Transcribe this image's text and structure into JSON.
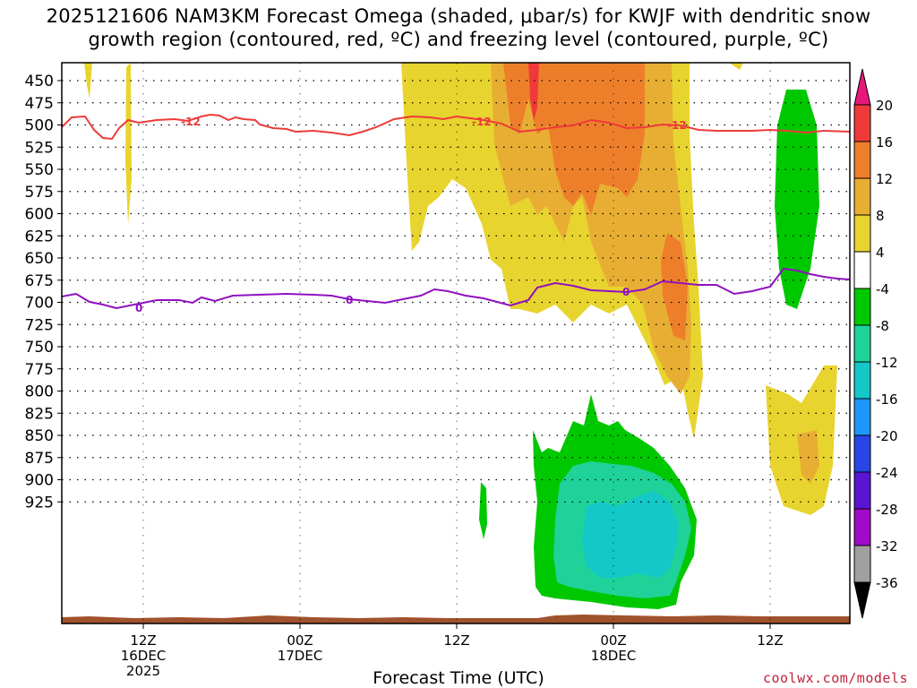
{
  "title_line1": "2025121606 NAM3KM Forecast Omega (shaded, μbar/s) for KWJF with dendritic snow",
  "title_line2": "growth region (contoured, red, ºC) and freezing level (contoured, purple, ºC)",
  "xaxis_title": "Forecast Time (UTC)",
  "credit": "coolwx.com/models",
  "chart_data": {
    "type": "time-height",
    "title": "2025121606 NAM3KM Forecast Omega (shaded, μbar/s) for KWJF with dendritic snow growth region (contoured, red, ºC) and freezing level (contoured, purple, ºC)",
    "xlabel": "Forecast Time (UTC)",
    "ylabel": "",
    "y_scale": "pressure (inverted)",
    "y_ticks": [
      450,
      475,
      500,
      525,
      550,
      575,
      600,
      625,
      650,
      675,
      700,
      725,
      750,
      775,
      800,
      825,
      850,
      875,
      900,
      925
    ],
    "x_ticks": [
      {
        "label": "12Z",
        "sub": "16DEC",
        "sub2": "2025"
      },
      {
        "label": "00Z",
        "sub": "17DEC",
        "sub2": ""
      },
      {
        "label": "12Z",
        "sub": "",
        "sub2": ""
      },
      {
        "label": "00Z",
        "sub": "18DEC",
        "sub2": ""
      },
      {
        "label": "12Z",
        "sub": "",
        "sub2": ""
      }
    ],
    "grid": true,
    "colorbar": {
      "ticks": [
        20,
        16,
        12,
        8,
        4,
        -4,
        -8,
        -12,
        -16,
        -20,
        -24,
        -28,
        -32,
        -36
      ],
      "colors": [
        "#e8187a",
        "#f03a3a",
        "#ee7f2a",
        "#e8ae33",
        "#e8d42e",
        "#ffffff",
        "#00c800",
        "#1ed29a",
        "#14c8c8",
        "#1e96ff",
        "#2846e6",
        "#5a14d2",
        "#a00ac8",
        "#a0a0a0",
        "#000000"
      ]
    },
    "contours": [
      {
        "name": "-12",
        "color": "#ee3a3a",
        "level_label": "-12"
      },
      {
        "name": "0",
        "color": "#9010c0",
        "level_label": "0"
      }
    ]
  }
}
